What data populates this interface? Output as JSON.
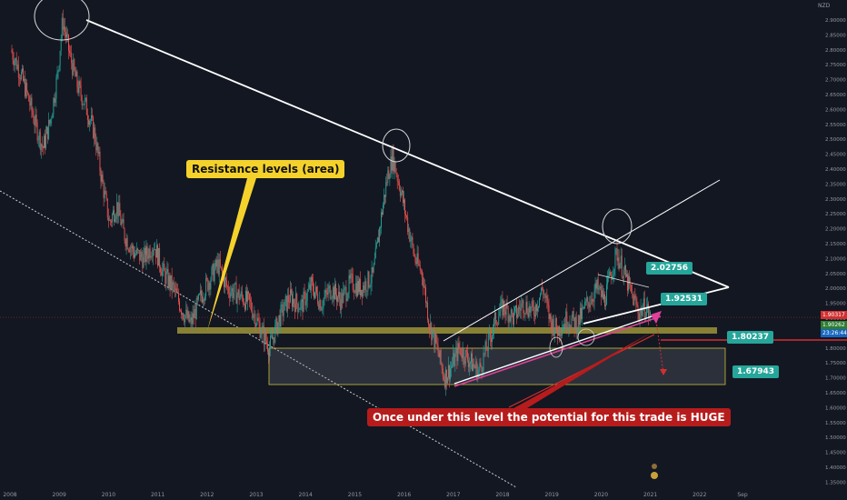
{
  "chart_data": {
    "type": "candlestick",
    "instrument_label": "NZD",
    "x_ticks": [
      "2008",
      "2009",
      "2010",
      "2011",
      "2012",
      "2013",
      "2014",
      "2015",
      "2016",
      "2017",
      "2018",
      "2019",
      "2020",
      "2021",
      "2022",
      "Sep"
    ],
    "y_ticks": [
      2.9,
      2.85,
      2.8,
      2.75,
      2.7,
      2.65,
      2.6,
      2.55,
      2.5,
      2.45,
      2.4,
      2.35,
      2.3,
      2.25,
      2.2,
      2.15,
      2.1,
      2.05,
      2.0,
      1.95,
      1.9,
      1.85,
      1.8,
      1.75,
      1.7,
      1.65,
      1.6,
      1.55,
      1.5,
      1.45,
      1.4,
      1.35
    ],
    "y_tick_labels": [
      "2.90000",
      "2.85000",
      "2.80000",
      "2.75000",
      "2.70000",
      "2.65000",
      "2.60000",
      "2.55000",
      "2.50000",
      "2.45000",
      "2.40000",
      "2.35000",
      "2.30000",
      "2.25000",
      "2.20000",
      "2.15000",
      "2.10000",
      "2.05000",
      "2.00000",
      "1.95000",
      "1.90000",
      "1.85000",
      "1.80000",
      "1.75000",
      "1.70000",
      "1.65000",
      "1.60000",
      "1.55000",
      "1.50000",
      "1.45000",
      "1.40000",
      "1.35000"
    ],
    "ylim": [
      1.32,
      2.93
    ],
    "price_path": [
      [
        2008.0,
        2.8
      ],
      [
        2008.2,
        2.72
      ],
      [
        2008.35,
        2.64
      ],
      [
        2008.5,
        2.55
      ],
      [
        2008.65,
        2.47
      ],
      [
        2008.8,
        2.56
      ],
      [
        2008.95,
        2.72
      ],
      [
        2009.05,
        2.9
      ],
      [
        2009.2,
        2.78
      ],
      [
        2009.35,
        2.68
      ],
      [
        2009.5,
        2.62
      ],
      [
        2009.7,
        2.52
      ],
      [
        2009.85,
        2.36
      ],
      [
        2010.0,
        2.22
      ],
      [
        2010.15,
        2.28
      ],
      [
        2010.3,
        2.18
      ],
      [
        2010.5,
        2.12
      ],
      [
        2010.7,
        2.1
      ],
      [
        2010.9,
        2.15
      ],
      [
        2011.1,
        2.05
      ],
      [
        2011.3,
        2.0
      ],
      [
        2011.5,
        1.92
      ],
      [
        2011.65,
        1.88
      ],
      [
        2011.85,
        1.97
      ],
      [
        2012.0,
        2.02
      ],
      [
        2012.2,
        2.08
      ],
      [
        2012.4,
        2.0
      ],
      [
        2012.6,
        1.98
      ],
      [
        2012.85,
        1.95
      ],
      [
        2013.05,
        1.87
      ],
      [
        2013.25,
        1.8
      ],
      [
        2013.45,
        1.9
      ],
      [
        2013.65,
        1.97
      ],
      [
        2013.9,
        1.94
      ],
      [
        2014.1,
        2.01
      ],
      [
        2014.3,
        1.95
      ],
      [
        2014.5,
        2.0
      ],
      [
        2014.7,
        1.96
      ],
      [
        2014.9,
        2.02
      ],
      [
        2015.1,
        2.0
      ],
      [
        2015.35,
        2.04
      ],
      [
        2015.5,
        2.22
      ],
      [
        2015.65,
        2.38
      ],
      [
        2015.75,
        2.44
      ],
      [
        2015.9,
        2.34
      ],
      [
        2016.05,
        2.22
      ],
      [
        2016.2,
        2.1
      ],
      [
        2016.35,
        2.05
      ],
      [
        2016.5,
        1.88
      ],
      [
        2016.65,
        1.8
      ],
      [
        2016.8,
        1.7
      ],
      [
        2016.95,
        1.74
      ],
      [
        2017.1,
        1.8
      ],
      [
        2017.3,
        1.76
      ],
      [
        2017.5,
        1.72
      ],
      [
        2017.7,
        1.82
      ],
      [
        2017.85,
        1.9
      ],
      [
        2018.0,
        1.94
      ],
      [
        2018.2,
        1.9
      ],
      [
        2018.4,
        1.95
      ],
      [
        2018.6,
        1.92
      ],
      [
        2018.8,
        2.0
      ],
      [
        2018.95,
        1.89
      ],
      [
        2019.1,
        1.86
      ],
      [
        2019.3,
        1.9
      ],
      [
        2019.5,
        1.88
      ],
      [
        2019.7,
        1.95
      ],
      [
        2019.9,
        2.0
      ],
      [
        2020.05,
        1.96
      ],
      [
        2020.2,
        2.06
      ],
      [
        2020.3,
        2.12
      ],
      [
        2020.45,
        2.05
      ],
      [
        2020.6,
        1.98
      ],
      [
        2020.75,
        1.92
      ],
      [
        2020.9,
        1.94
      ],
      [
        2020.97,
        1.9
      ]
    ]
  },
  "levels": {
    "l1": "2.02756",
    "l2": "1.92531",
    "l3": "1.80237",
    "l4": "1.67943"
  },
  "annotations": {
    "resistance": "Resistance levels (area)",
    "huge": "Once under this level the potential for this trade is HUGE"
  },
  "price_scale_badges": {
    "current": "1.90317",
    "b2": "1.90262",
    "b3": "23:26:44"
  },
  "colors": {
    "background": "#131722",
    "up": "#26a69a",
    "down": "#ef5350",
    "resistance_band": "#8d8637",
    "box_border": "#c9c13a",
    "trendline": "#ffffff",
    "magenta_line": "#e0409a",
    "red_line": "#d32f2f"
  }
}
